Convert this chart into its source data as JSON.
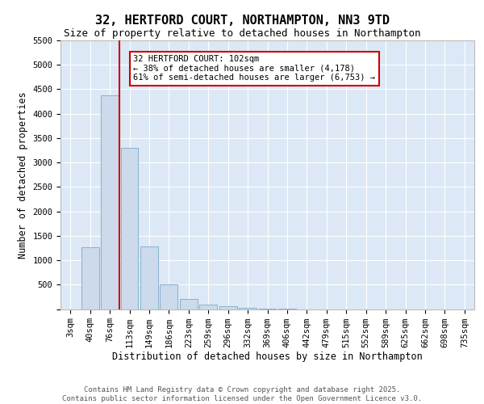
{
  "title_line1": "32, HERTFORD COURT, NORTHAMPTON, NN3 9TD",
  "title_line2": "Size of property relative to detached houses in Northampton",
  "xlabel": "Distribution of detached houses by size in Northampton",
  "ylabel": "Number of detached properties",
  "bar_color": "#ccdaeb",
  "bar_edge_color": "#7aaac8",
  "background_color": "#dce8f5",
  "grid_color": "#ffffff",
  "vline_color": "#cc0000",
  "annotation_text": "32 HERTFORD COURT: 102sqm\n← 38% of detached houses are smaller (4,178)\n61% of semi-detached houses are larger (6,753) →",
  "annotation_box_color": "#cc0000",
  "categories": [
    "3sqm",
    "40sqm",
    "76sqm",
    "113sqm",
    "149sqm",
    "186sqm",
    "223sqm",
    "259sqm",
    "296sqm",
    "332sqm",
    "369sqm",
    "406sqm",
    "442sqm",
    "479sqm",
    "515sqm",
    "552sqm",
    "589sqm",
    "625sqm",
    "662sqm",
    "698sqm",
    "735sqm"
  ],
  "values": [
    0,
    1270,
    4380,
    3300,
    1280,
    500,
    200,
    90,
    55,
    25,
    10,
    5,
    0,
    0,
    0,
    0,
    0,
    0,
    0,
    0,
    0
  ],
  "ylim": [
    0,
    5500
  ],
  "yticks": [
    0,
    500,
    1000,
    1500,
    2000,
    2500,
    3000,
    3500,
    4000,
    4500,
    5000,
    5500
  ],
  "footer_text": "Contains HM Land Registry data © Crown copyright and database right 2025.\nContains public sector information licensed under the Open Government Licence v3.0.",
  "title_fontsize": 11,
  "subtitle_fontsize": 9,
  "axis_label_fontsize": 8.5,
  "tick_fontsize": 7.5,
  "footer_fontsize": 6.5,
  "annot_fontsize": 7.5
}
